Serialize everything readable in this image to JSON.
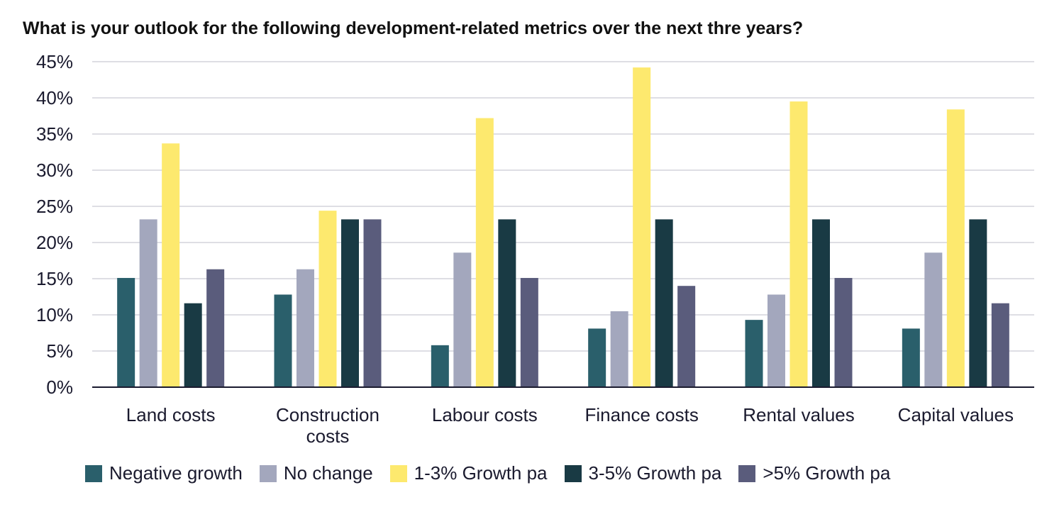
{
  "chart_data": {
    "type": "bar",
    "title": "What is your outlook for the following development-related metrics over the next thre years?",
    "categories": [
      "Land costs",
      "Construction costs",
      "Labour costs",
      "Finance costs",
      "Rental values",
      "Capital values"
    ],
    "series": [
      {
        "name": "Negative growth",
        "color": "#2a5f6b",
        "values": [
          15.1,
          12.8,
          5.8,
          8.1,
          9.3,
          8.1
        ]
      },
      {
        "name": "No change",
        "color": "#a3a7bd",
        "values": [
          23.2,
          16.3,
          18.6,
          10.5,
          12.8,
          18.6
        ]
      },
      {
        "name": "1-3% Growth pa",
        "color": "#fde96e",
        "values": [
          33.7,
          24.4,
          37.2,
          44.2,
          39.5,
          38.4
        ]
      },
      {
        "name": "3-5% Growth pa",
        "color": "#193a44",
        "values": [
          11.6,
          23.2,
          23.2,
          23.2,
          23.2,
          23.2
        ]
      },
      {
        "name": ">5% Growth pa",
        "color": "#5a5c7c",
        "values": [
          16.3,
          23.2,
          15.1,
          14.0,
          15.1,
          11.6
        ]
      }
    ],
    "ylim": [
      0,
      45
    ],
    "yticks": [
      {
        "value": 0,
        "label": "0%"
      },
      {
        "value": 5,
        "label": "5%"
      },
      {
        "value": 10,
        "label": "10%"
      },
      {
        "value": 15,
        "label": "15%"
      },
      {
        "value": 20,
        "label": "20%"
      },
      {
        "value": 25,
        "label": "25%"
      },
      {
        "value": 30,
        "label": "30%"
      },
      {
        "value": 35,
        "label": "35%"
      },
      {
        "value": 40,
        "label": "40%"
      },
      {
        "value": 45,
        "label": "45%"
      }
    ],
    "grid": true,
    "legend": "bottom"
  }
}
